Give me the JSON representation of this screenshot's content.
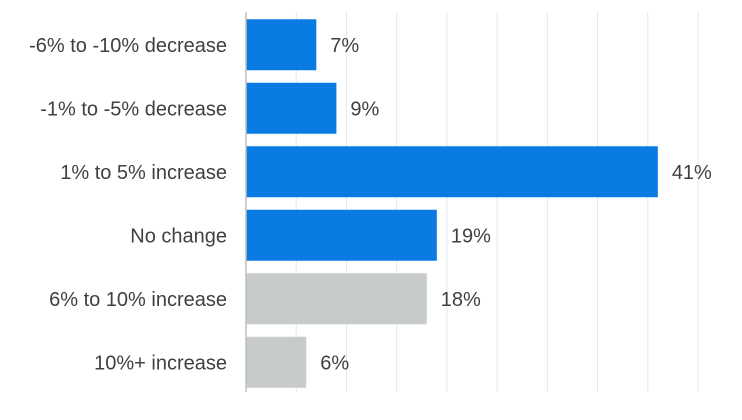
{
  "chart_data": {
    "type": "bar",
    "orientation": "horizontal",
    "categories": [
      "-6% to -10% decrease",
      "-1% to -5% decrease",
      "1% to 5% increase",
      "No change",
      "6% to 10% increase",
      "10%+ increase"
    ],
    "values": [
      7,
      9,
      41,
      19,
      18,
      6
    ],
    "value_labels": [
      "7%",
      "9%",
      "41%",
      "19%",
      "18%",
      "6%"
    ],
    "bar_colors": [
      "#0a7be3",
      "#0a7be3",
      "#0a7be3",
      "#0a7be3",
      "#c8cbcc",
      "#c8cbcc"
    ],
    "xlim": [
      0,
      45
    ],
    "grid": true,
    "legend": "none"
  }
}
